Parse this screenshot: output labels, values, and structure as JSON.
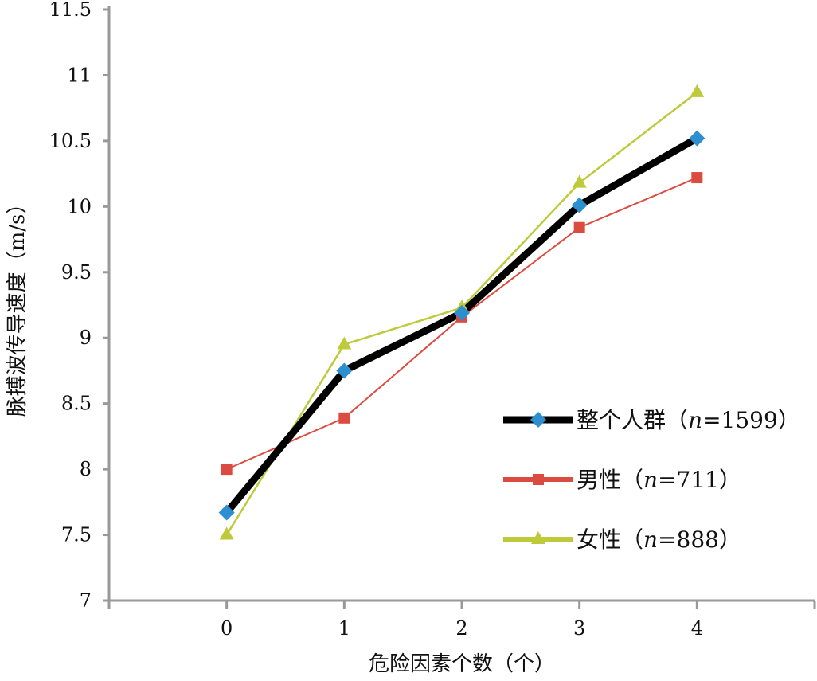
{
  "chart_data": {
    "type": "line",
    "title": "",
    "xlabel": "危险因素个数（个）",
    "ylabel": "脉搏波传导速度（m/s）",
    "categories": [
      "0",
      "1",
      "2",
      "3",
      "4"
    ],
    "x": [
      0,
      1,
      2,
      3,
      4
    ],
    "xlim": [
      -1,
      5
    ],
    "ylim": [
      7,
      11.5
    ],
    "yticks": [
      "7",
      "7.5",
      "8",
      "8.5",
      "9",
      "9.5",
      "10",
      "10.5",
      "11",
      "11.5"
    ],
    "grid": false,
    "legend_position": "right",
    "series": [
      {
        "name": "整个人群（n=1599）",
        "name_prefix": "整个人群（",
        "n_label": "n",
        "n_value": "=1599）",
        "marker": "diamond",
        "line_color": "#000000",
        "marker_color": "#2e8fd0",
        "values": [
          7.67,
          8.75,
          9.19,
          10.01,
          10.52
        ]
      },
      {
        "name": "男性（n=711）",
        "name_prefix": "男性（",
        "n_label": "n",
        "n_value": "=711）",
        "marker": "square",
        "line_color": "#dc4b40",
        "marker_color": "#dc4b40",
        "values": [
          8.0,
          8.39,
          9.16,
          9.84,
          10.22
        ]
      },
      {
        "name": "女性（n=888）",
        "name_prefix": "女性（",
        "n_label": "n",
        "n_value": "=888）",
        "marker": "triangle",
        "line_color": "#bfca3a",
        "marker_color": "#bfca3a",
        "values": [
          7.5,
          8.95,
          9.23,
          10.18,
          10.87
        ]
      }
    ]
  }
}
